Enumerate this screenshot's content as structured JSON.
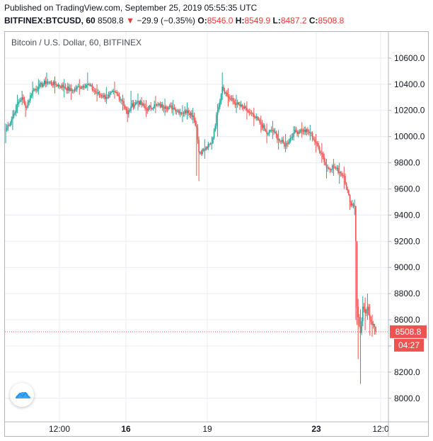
{
  "header": {
    "published": "Published on TradingView.com, September 25, 2019 05:55:35 UTC",
    "symbol": "BITFINEX:BTCUSD, 60",
    "last": "8508.8",
    "arrow": "▼",
    "change": "−29.9 (−0.35%)",
    "o_label": "O:",
    "o": "8546.0",
    "h_label": "H:",
    "h": "8549.9",
    "l_label": "L:",
    "l": "8487.2",
    "c_label": "C:",
    "c": "8508.8"
  },
  "legend": "Bitcoin / U.S. Dollar, 60, BITFINEX",
  "price_tag": "8508.8",
  "countdown": "04:27",
  "colors": {
    "up": "#26a69a",
    "down": "#ef5350",
    "grid": "#e9ecf2",
    "axis": "#b2b5be",
    "tag": "#ef5350"
  },
  "logo_icon": "tradingview-cloud-icon",
  "chart_data": {
    "type": "candlestick",
    "title": "Bitcoin / U.S. Dollar, 60, BITFINEX",
    "xlabel": "",
    "ylabel": "",
    "ylim": [
      7820,
      10800
    ],
    "y_ticks": [
      "10600.0",
      "10400.0",
      "10200.0",
      "10000.0",
      "9800.0",
      "9600.0",
      "9400.0",
      "9200.0",
      "9000.0",
      "8800.0",
      "8600.0",
      "8400.0",
      "8200.0",
      "8000.0"
    ],
    "x_ticks": [
      "12:00",
      "16",
      "19",
      "23",
      "12:0"
    ],
    "grid": true,
    "anchors": [
      [
        0,
        10050,
        10100,
        9950
      ],
      [
        6,
        10150,
        10200,
        10050
      ],
      [
        10,
        10250,
        10320,
        10180
      ],
      [
        14,
        10300,
        10350,
        10240
      ],
      [
        17,
        10220,
        10270,
        10150
      ],
      [
        23,
        10350,
        10420,
        10290
      ],
      [
        28,
        10380,
        10440,
        10320
      ],
      [
        35,
        10420,
        10490,
        10380
      ],
      [
        42,
        10400,
        10460,
        10330
      ],
      [
        50,
        10380,
        10440,
        10300
      ],
      [
        56,
        10350,
        10400,
        10280
      ],
      [
        63,
        10380,
        10440,
        10320
      ],
      [
        70,
        10400,
        10490,
        10350
      ],
      [
        78,
        10330,
        10400,
        10270
      ],
      [
        86,
        10300,
        10380,
        10250
      ],
      [
        93,
        10340,
        10420,
        10290
      ],
      [
        100,
        10270,
        10320,
        10200
      ],
      [
        104,
        10170,
        10230,
        10110
      ],
      [
        107,
        10230,
        10350,
        10180
      ],
      [
        113,
        10270,
        10330,
        10200
      ],
      [
        120,
        10210,
        10280,
        10150
      ],
      [
        128,
        10240,
        10310,
        10180
      ],
      [
        136,
        10230,
        10290,
        10160
      ],
      [
        143,
        10220,
        10280,
        10160
      ],
      [
        151,
        10180,
        10240,
        10110
      ],
      [
        155,
        10200,
        10260,
        10130
      ],
      [
        160,
        10160,
        10220,
        10100
      ],
      [
        163,
        10070,
        10120,
        9700
      ],
      [
        165,
        9880,
        10000,
        9660
      ],
      [
        170,
        9900,
        9980,
        9830
      ],
      [
        176,
        9950,
        10000,
        9900
      ],
      [
        181,
        10200,
        10250,
        10000
      ],
      [
        185,
        10380,
        10490,
        10280
      ],
      [
        190,
        10300,
        10370,
        10230
      ],
      [
        197,
        10250,
        10320,
        10180
      ],
      [
        206,
        10200,
        10270,
        10130
      ],
      [
        212,
        10150,
        10220,
        10080
      ],
      [
        218,
        10100,
        10160,
        10030
      ],
      [
        223,
        10020,
        10100,
        9950
      ],
      [
        228,
        10050,
        10120,
        9980
      ],
      [
        233,
        9980,
        10050,
        9900
      ],
      [
        239,
        9930,
        10020,
        9880
      ],
      [
        246,
        10030,
        10080,
        9970
      ],
      [
        253,
        10050,
        10110,
        9990
      ],
      [
        260,
        10030,
        10090,
        9970
      ],
      [
        265,
        9950,
        10020,
        9880
      ],
      [
        270,
        9870,
        9950,
        9800
      ],
      [
        274,
        9760,
        9830,
        9680
      ],
      [
        280,
        9770,
        9830,
        9700
      ],
      [
        285,
        9730,
        9800,
        9640
      ],
      [
        289,
        9700,
        9770,
        9600
      ],
      [
        294,
        9500,
        9560,
        9440
      ],
      [
        298,
        9470,
        9520,
        9400
      ],
      [
        299,
        9200,
        9460,
        8600
      ],
      [
        300,
        8700,
        8780,
        8560
      ],
      [
        301,
        8620,
        8760,
        8300
      ],
      [
        303,
        8500,
        8680,
        8110
      ],
      [
        305,
        8700,
        8780,
        8550
      ],
      [
        307,
        8650,
        8770,
        8520
      ],
      [
        309,
        8700,
        8800,
        8600
      ],
      [
        311,
        8600,
        8720,
        8480
      ],
      [
        313,
        8560,
        8640,
        8470
      ],
      [
        315,
        8546,
        8550,
        8487
      ],
      [
        316,
        8508.8,
        8549.9,
        8487.2
      ]
    ]
  }
}
